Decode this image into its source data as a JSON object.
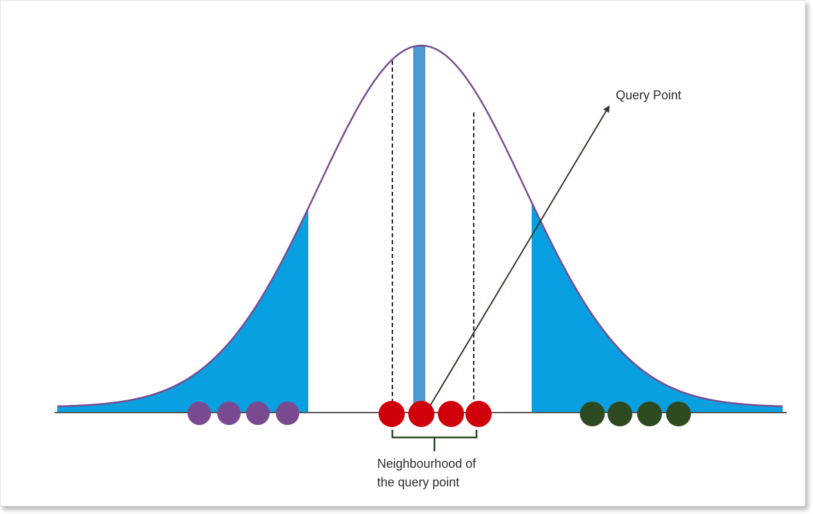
{
  "labels": {
    "query_point": "Query Point",
    "neighbourhood_line1": "Neighbourhood of",
    "neighbourhood_line2": "the query point"
  },
  "colors": {
    "curve": "#7a4a90",
    "tail_fill": "#08a0e0",
    "query_bar": "#4a9ad6",
    "purple_points": "#7a4a90",
    "red_points": "#d0000a",
    "green_points": "#2e4a20",
    "arrow": "#2e3a28",
    "baseline": "#555555",
    "dashed": "#222222"
  },
  "points": {
    "left_group": {
      "count": 4,
      "color_key": "purple_points"
    },
    "neighbourhood_group": {
      "count": 4,
      "color_key": "red_points"
    },
    "right_group": {
      "count": 4,
      "color_key": "green_points"
    }
  }
}
